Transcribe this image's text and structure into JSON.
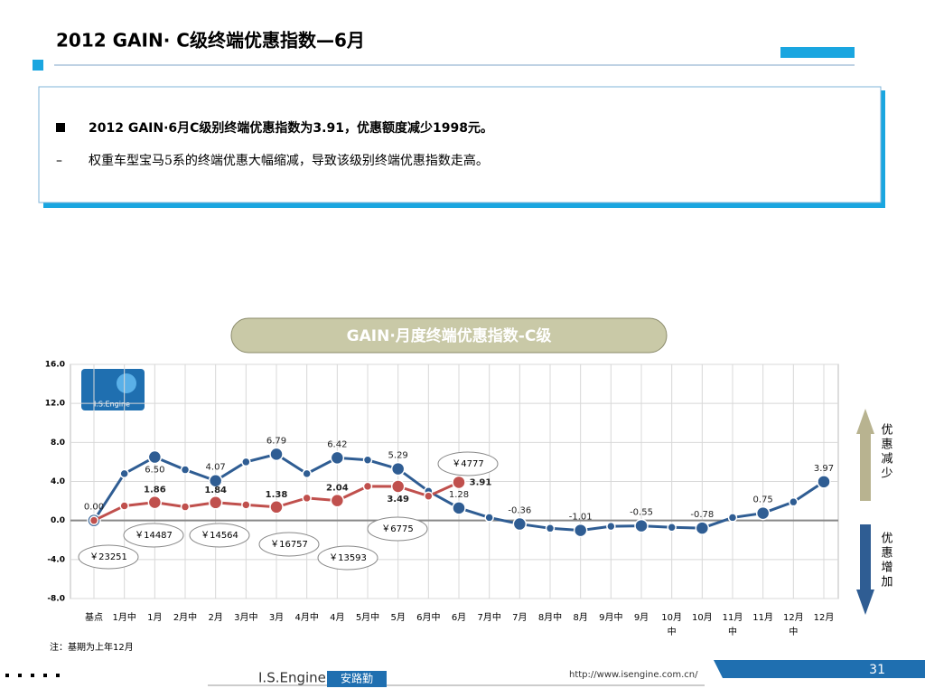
{
  "header": {
    "title": "2012 GAIN· C级终端优惠指数—6月"
  },
  "summary": {
    "bullet": "2012 GAIN·6月C级别终端优惠指数为3.91，优惠额度减少1998元。",
    "detail": "权重车型宝马5系的终端优惠大幅缩减，导致该级别终端优惠指数走高。"
  },
  "chart_data": {
    "type": "line",
    "title": "GAIN·月度终端优惠指数-C级",
    "logo": "I.S.Engine",
    "categories": [
      "基点",
      "1月中",
      "1月",
      "2月中",
      "2月",
      "3月中",
      "3月",
      "4月中",
      "4月",
      "5月中",
      "5月",
      "6月中",
      "6月",
      "7月中",
      "7月",
      "8月中",
      "8月",
      "9月中",
      "9月",
      "10月中",
      "10月",
      "11月中",
      "11月",
      "12月中",
      "12月"
    ],
    "series": [
      {
        "color": "#2f5d93",
        "values": [
          0,
          4.8,
          6.5,
          5.2,
          4.07,
          6.0,
          6.79,
          4.8,
          6.42,
          6.2,
          5.29,
          3.0,
          1.28,
          0.3,
          -0.36,
          -0.8,
          -1.01,
          -0.6,
          -0.55,
          -0.7,
          -0.78,
          0.3,
          0.75,
          1.9,
          3.97
        ],
        "value_labels": [
          "0.00",
          null,
          "6.50",
          null,
          "4.07",
          null,
          "6.79",
          null,
          "6.42",
          null,
          "5.29",
          null,
          "1.28",
          null,
          "-0.36",
          null,
          "-1.01",
          null,
          "-0.55",
          null,
          "-0.78",
          null,
          "0.75",
          null,
          "3.97"
        ]
      },
      {
        "color": "#c0504d",
        "values": [
          0,
          1.5,
          1.86,
          1.4,
          1.84,
          1.6,
          1.38,
          2.3,
          2.04,
          3.5,
          3.49,
          2.5,
          3.91,
          null,
          null,
          null,
          null,
          null,
          null,
          null,
          null,
          null,
          null,
          null,
          null
        ],
        "value_labels": [
          null,
          null,
          "1.86",
          null,
          "1.84",
          null,
          "1.38",
          null,
          "2.04",
          null,
          "3.49",
          null,
          "3.91",
          null,
          null,
          null,
          null,
          null,
          null,
          null,
          null,
          null,
          null,
          null,
          null
        ]
      }
    ],
    "ylim": [
      -8,
      16
    ],
    "yticks": [
      {
        "value": -8,
        "label": "-8.0"
      },
      {
        "value": -4,
        "label": "-4.0"
      },
      {
        "value": 0,
        "label": "0.0"
      },
      {
        "value": 4,
        "label": "4.0"
      },
      {
        "value": 8,
        "label": "8.0"
      },
      {
        "value": 12,
        "label": "12.0"
      },
      {
        "value": 16,
        "label": "16.0"
      }
    ],
    "grid": true,
    "annotations": [
      "￥23251",
      "￥14487",
      "￥14564",
      "￥16757",
      "￥13593",
      "￥6775",
      "￥4777"
    ],
    "arrow_up": "优惠减少",
    "arrow_down": "优惠增加",
    "note": "注：基期为上年12月"
  },
  "footer": {
    "brand": "I.S.Engine",
    "brand_cn": "安路勤",
    "url": "http://www.isengine.com.cn/",
    "page": "31"
  }
}
